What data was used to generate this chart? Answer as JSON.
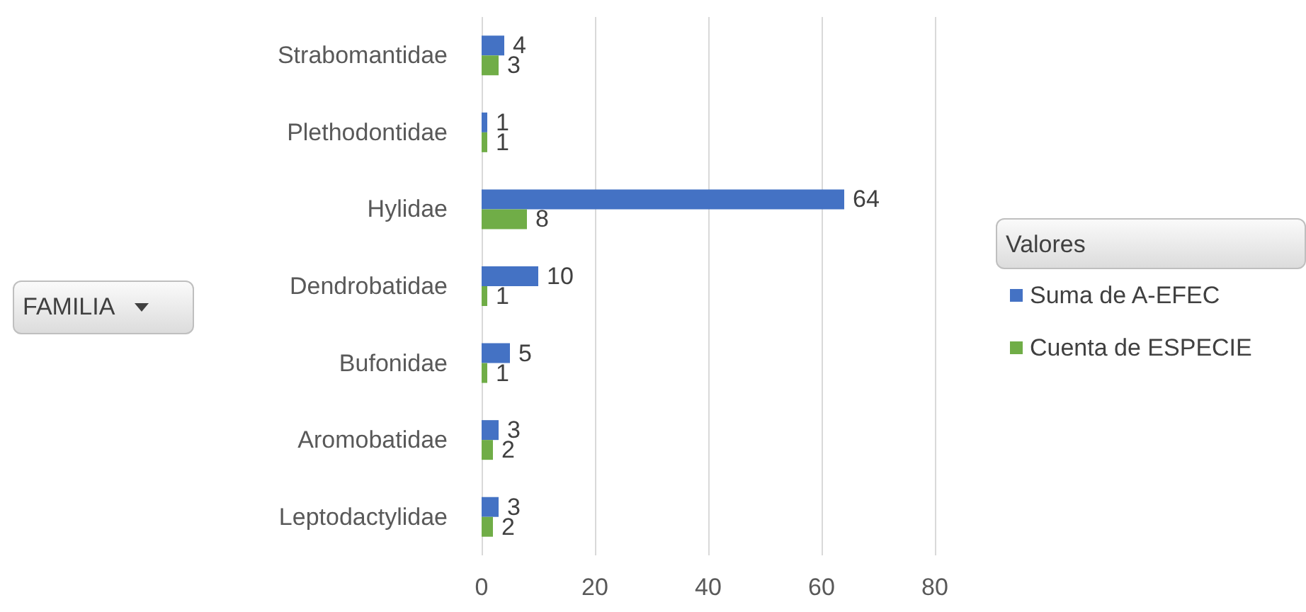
{
  "chart_data": {
    "type": "bar",
    "orientation": "horizontal",
    "categories": [
      "Strabomantidae",
      "Plethodontidae",
      "Hylidae",
      "Dendrobatidae",
      "Bufonidae",
      "Aromobatidae",
      "Leptodactylidae"
    ],
    "series": [
      {
        "name": "Suma de A-EFEC",
        "color": "#4472c4",
        "values": [
          4,
          1,
          64,
          10,
          5,
          3,
          3
        ]
      },
      {
        "name": "Cuenta de ESPECIE",
        "color": "#70ad47",
        "values": [
          3,
          1,
          8,
          1,
          1,
          2,
          2
        ]
      }
    ],
    "xlim": [
      0,
      80
    ],
    "xticks": [
      0,
      20,
      40,
      60,
      80
    ],
    "grid": "x",
    "data_labels": true,
    "legend": "right",
    "legend_title": "Valores",
    "annotations": [
      "FAMILIA"
    ]
  }
}
